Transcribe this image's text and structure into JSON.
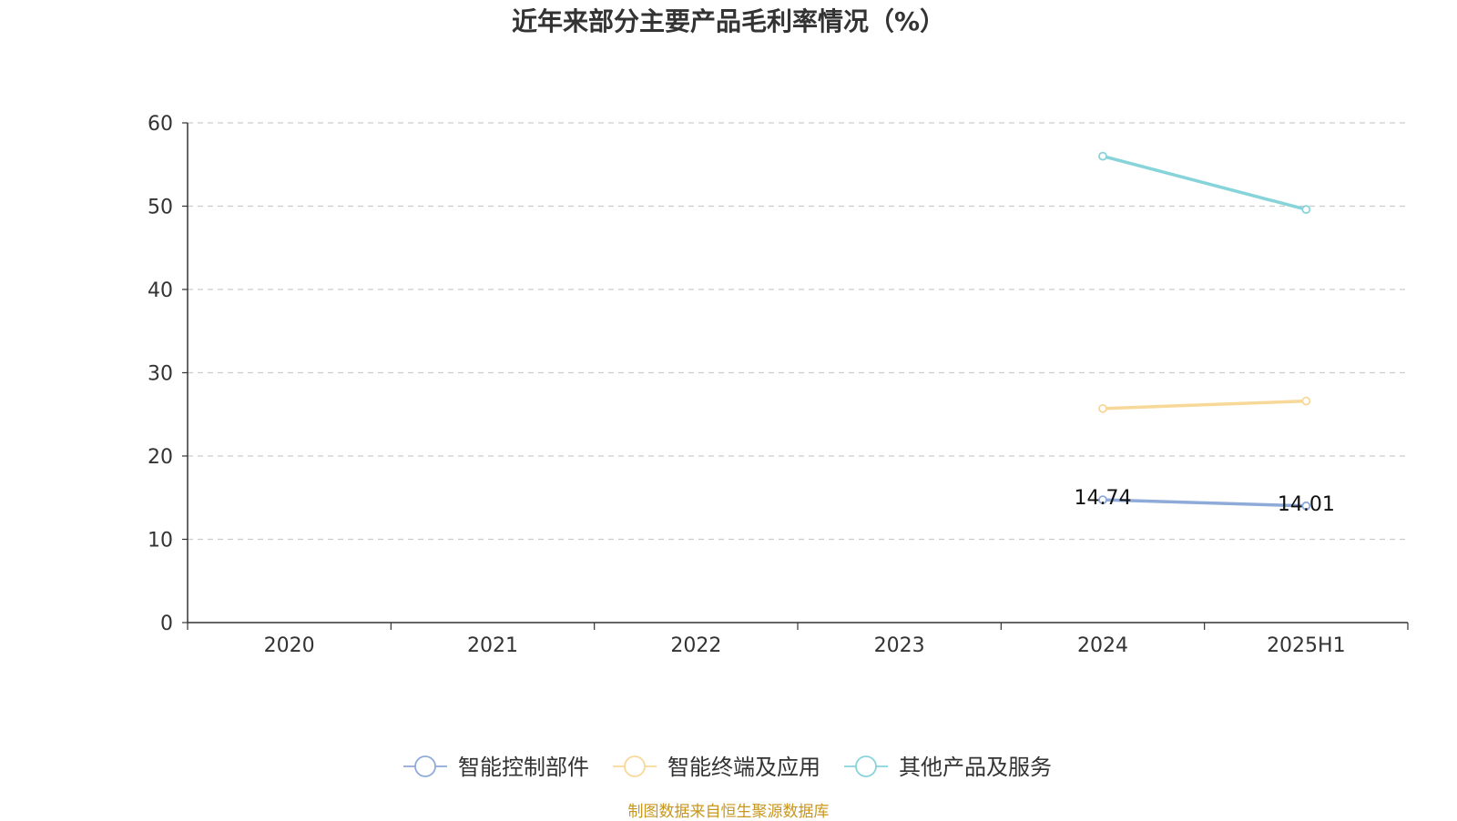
{
  "title": "近年来部分主要产品毛利率情况（%）",
  "source": "制图数据来自恒生聚源数据库",
  "colors": {
    "axis": "#333333",
    "grid": "#cccccc",
    "source": "#c8961e"
  },
  "chart_data": {
    "type": "line",
    "title": "近年来部分主要产品毛利率情况（%）",
    "xlabel": "",
    "ylabel": "",
    "categories": [
      "2020",
      "2021",
      "2022",
      "2023",
      "2024",
      "2025H1"
    ],
    "ylim": [
      0,
      60
    ],
    "yticks": [
      0,
      10,
      20,
      30,
      40,
      50,
      60
    ],
    "grid": true,
    "legend_position": "bottom",
    "series": [
      {
        "name": "智能控制部件",
        "color": "#8eaad8",
        "values": [
          null,
          null,
          null,
          null,
          14.74,
          14.01
        ],
        "labels": [
          "",
          "",
          "",
          "",
          "14.74",
          "14.01"
        ]
      },
      {
        "name": "智能终端及应用",
        "color": "#f8d898",
        "values": [
          null,
          null,
          null,
          null,
          25.7,
          26.6
        ],
        "labels": [
          "",
          "",
          "",
          "",
          "",
          ""
        ]
      },
      {
        "name": "其他产品及服务",
        "color": "#86d4d9",
        "values": [
          null,
          null,
          null,
          null,
          56.0,
          49.6
        ],
        "labels": [
          "",
          "",
          "",
          "",
          "",
          ""
        ]
      }
    ]
  }
}
